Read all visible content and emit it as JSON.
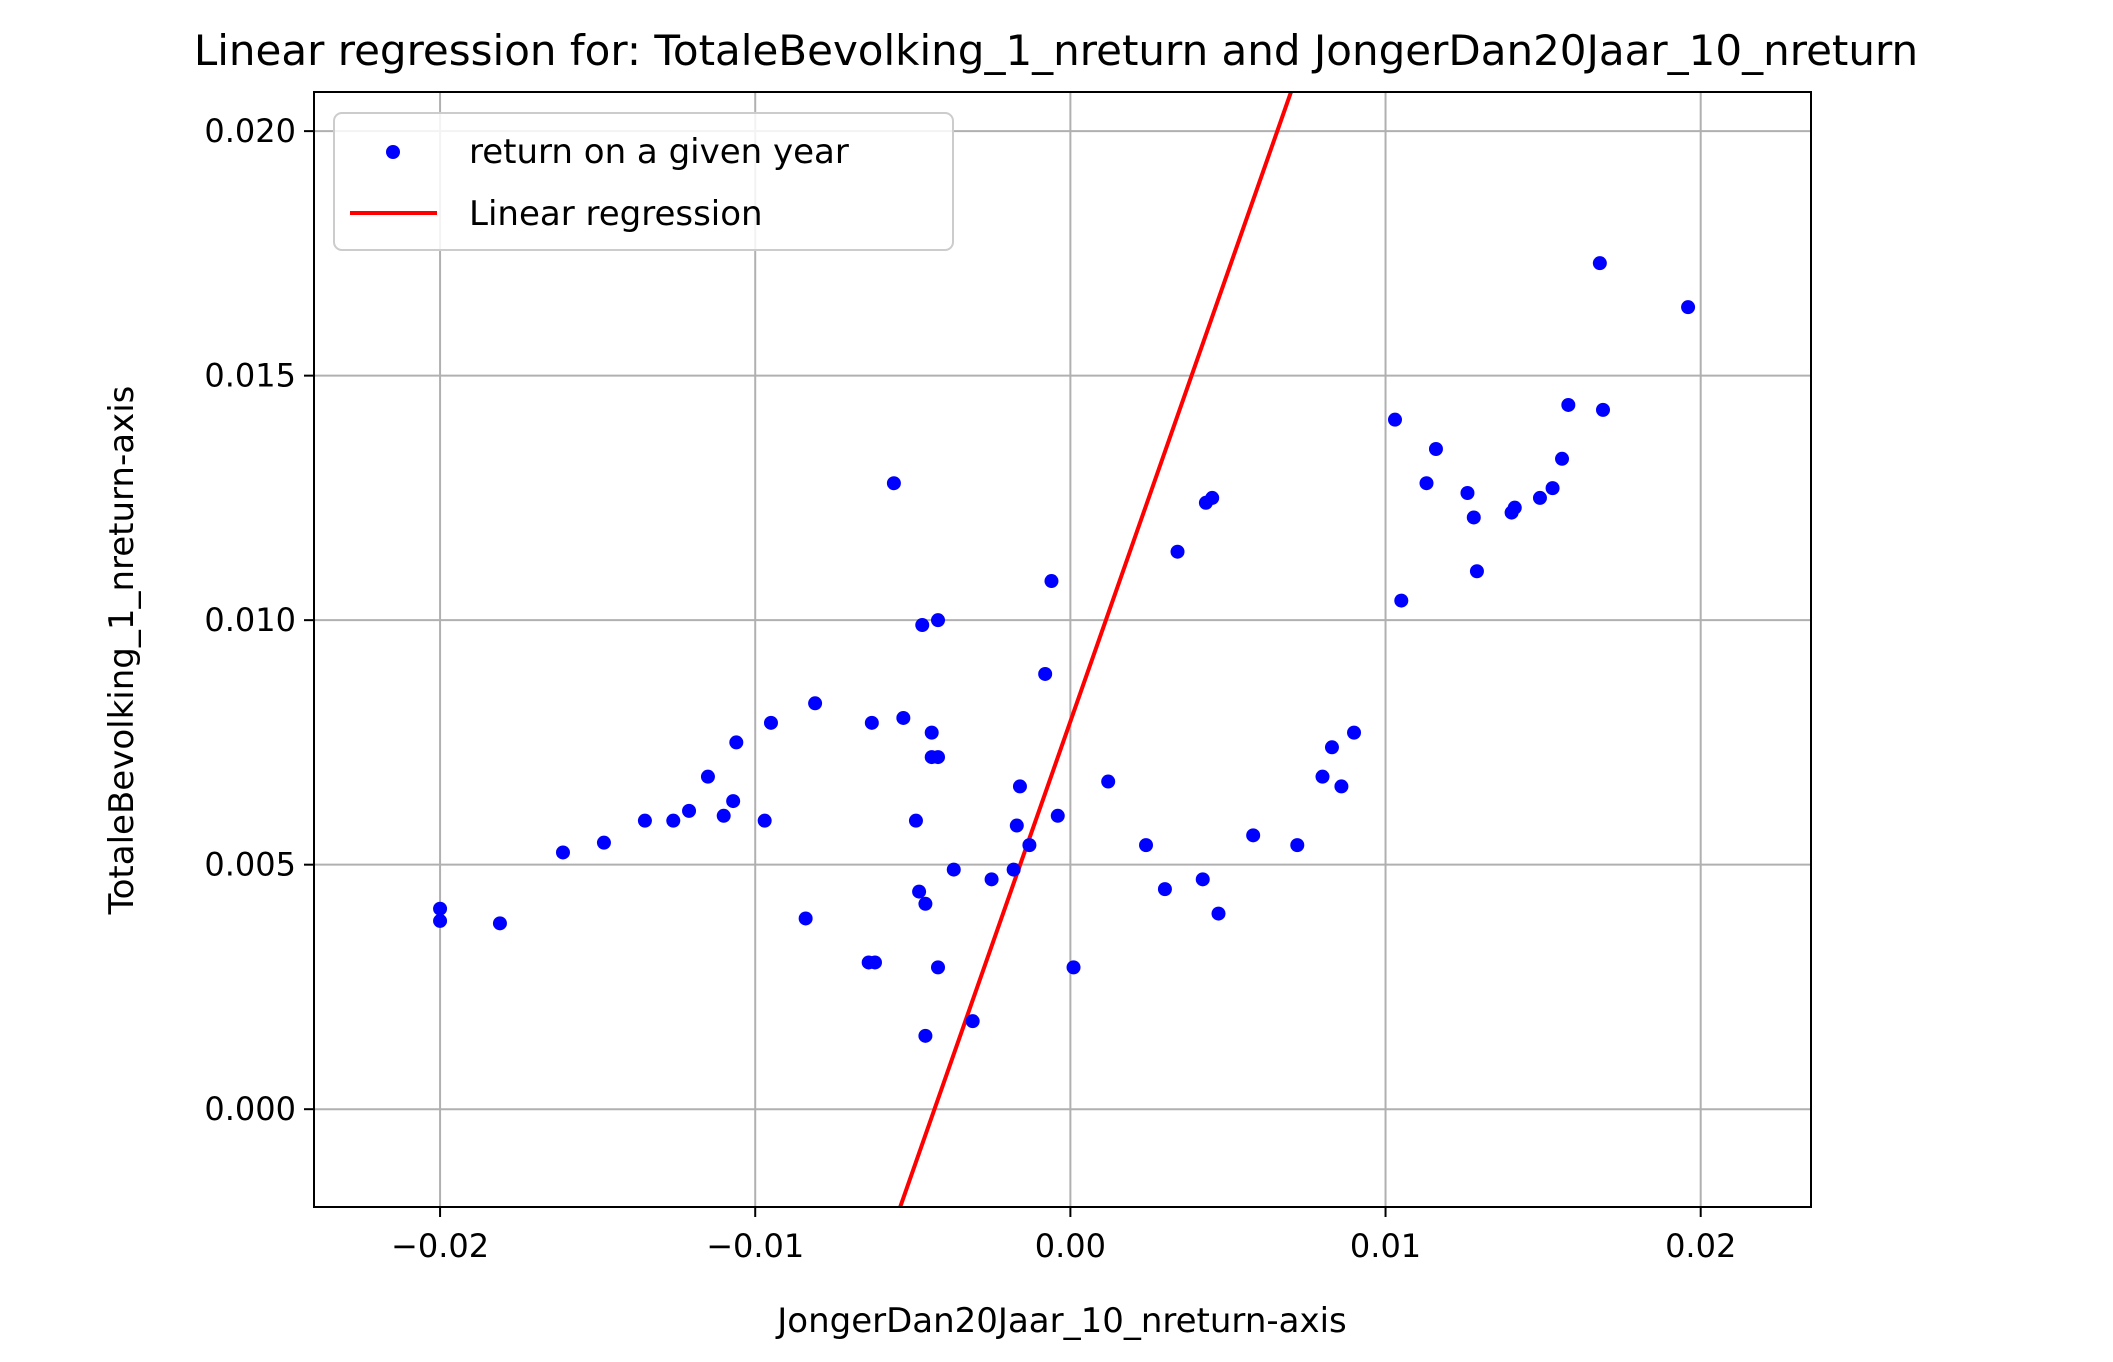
{
  "chart_data": {
    "type": "scatter",
    "title": "Linear regression for: TotaleBevolking_1_nreturn and JongerDan20Jaar_10_nreturn",
    "xlabel": "JongerDan20Jaar_10_nreturn-axis",
    "ylabel": "TotaleBevolking_1_nreturn-axis",
    "xlim": [
      -0.024,
      0.0235
    ],
    "ylim": [
      -0.002,
      0.0208
    ],
    "grid": true,
    "legend_position": "upper-left",
    "x_ticks": [
      {
        "value": -0.02,
        "label": "−0.02"
      },
      {
        "value": -0.01,
        "label": "−0.01"
      },
      {
        "value": 0.0,
        "label": "0.00"
      },
      {
        "value": 0.01,
        "label": "0.01"
      },
      {
        "value": 0.02,
        "label": "0.02"
      }
    ],
    "y_ticks": [
      {
        "value": 0.0,
        "label": "0.000"
      },
      {
        "value": 0.005,
        "label": "0.005"
      },
      {
        "value": 0.01,
        "label": "0.010"
      },
      {
        "value": 0.015,
        "label": "0.015"
      },
      {
        "value": 0.02,
        "label": "0.020"
      }
    ],
    "series": [
      {
        "name": "return on a given year",
        "kind": "scatter",
        "color": "#0000ff",
        "points": [
          [
            -0.02,
            0.0041
          ],
          [
            -0.02,
            0.00385
          ],
          [
            -0.0181,
            0.0038
          ],
          [
            -0.0161,
            0.00525
          ],
          [
            -0.0148,
            0.00545
          ],
          [
            -0.0135,
            0.0059
          ],
          [
            -0.0126,
            0.0059
          ],
          [
            -0.0121,
            0.0061
          ],
          [
            -0.0115,
            0.0068
          ],
          [
            -0.011,
            0.006
          ],
          [
            -0.0107,
            0.0063
          ],
          [
            -0.0106,
            0.0075
          ],
          [
            -0.0097,
            0.0059
          ],
          [
            -0.0095,
            0.0079
          ],
          [
            -0.0084,
            0.0039
          ],
          [
            -0.0081,
            0.0083
          ],
          [
            -0.0064,
            0.003
          ],
          [
            -0.0063,
            0.0079
          ],
          [
            -0.0062,
            0.003
          ],
          [
            -0.0056,
            0.0128
          ],
          [
            -0.0053,
            0.008
          ],
          [
            -0.0049,
            0.0059
          ],
          [
            -0.0048,
            0.00445
          ],
          [
            -0.0047,
            0.0099
          ],
          [
            -0.0046,
            0.0042
          ],
          [
            -0.0046,
            0.0015
          ],
          [
            -0.0044,
            0.0077
          ],
          [
            -0.0044,
            0.0072
          ],
          [
            -0.0042,
            0.0072
          ],
          [
            -0.0042,
            0.0029
          ],
          [
            -0.0042,
            0.01
          ],
          [
            -0.0037,
            0.0049
          ],
          [
            -0.0031,
            0.0018
          ],
          [
            -0.0025,
            0.0047
          ],
          [
            -0.0018,
            0.0049
          ],
          [
            -0.0017,
            0.0058
          ],
          [
            -0.0016,
            0.0066
          ],
          [
            -0.0013,
            0.0054
          ],
          [
            -0.0008,
            0.0089
          ],
          [
            -0.0006,
            0.0108
          ],
          [
            -0.0004,
            0.006
          ],
          [
            0.0001,
            0.0029
          ],
          [
            0.0012,
            0.0067
          ],
          [
            0.0024,
            0.0054
          ],
          [
            0.003,
            0.0045
          ],
          [
            0.0034,
            0.0114
          ],
          [
            0.0042,
            0.0047
          ],
          [
            0.0043,
            0.0124
          ],
          [
            0.0045,
            0.0125
          ],
          [
            0.0047,
            0.004
          ],
          [
            0.0058,
            0.0056
          ],
          [
            0.0072,
            0.0054
          ],
          [
            0.008,
            0.0068
          ],
          [
            0.0083,
            0.0074
          ],
          [
            0.0086,
            0.0066
          ],
          [
            0.009,
            0.0077
          ],
          [
            0.0103,
            0.0141
          ],
          [
            0.0105,
            0.0104
          ],
          [
            0.0113,
            0.0128
          ],
          [
            0.0116,
            0.0135
          ],
          [
            0.0126,
            0.0126
          ],
          [
            0.0128,
            0.0121
          ],
          [
            0.0129,
            0.011
          ],
          [
            0.014,
            0.0122
          ],
          [
            0.0141,
            0.0123
          ],
          [
            0.0149,
            0.0125
          ],
          [
            0.0153,
            0.0127
          ],
          [
            0.0156,
            0.0133
          ],
          [
            0.0158,
            0.0144
          ],
          [
            0.0168,
            0.0173
          ],
          [
            0.0169,
            0.0143
          ],
          [
            0.0196,
            0.0164
          ]
        ]
      },
      {
        "name": "Linear regression",
        "kind": "line",
        "color": "#ff0000",
        "points": [
          [
            -0.0054,
            -0.002
          ],
          [
            0.007,
            0.0208
          ]
        ]
      }
    ]
  }
}
